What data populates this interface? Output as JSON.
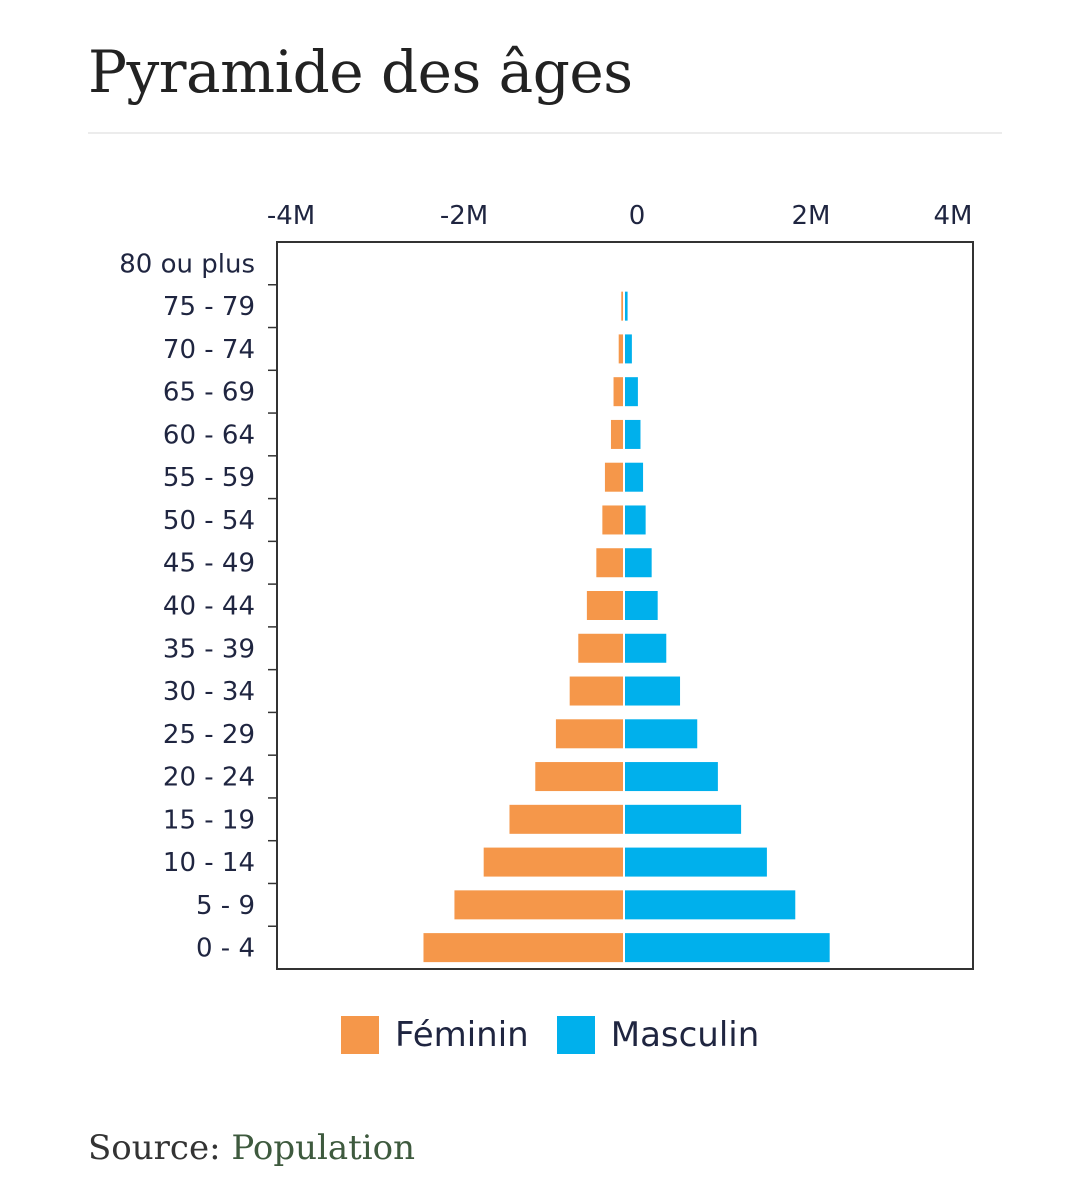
{
  "page": {
    "title": "Pyramide des âges"
  },
  "source": {
    "label": "Source:",
    "link_text": "Population"
  },
  "colors": {
    "feminin": "#F5974A",
    "masculin": "#00B0EC",
    "axis": "#333333",
    "text": "#1F2540"
  },
  "chart_data": {
    "type": "bar",
    "orientation": "horizontal",
    "title": "",
    "xlabel": "",
    "ylabel": "",
    "x_ticks": [
      "-4M",
      "-2M",
      "0",
      "2M",
      "4M"
    ],
    "xlim": [
      -4000000,
      4000000
    ],
    "categories": [
      "80 ou plus",
      "75 - 79",
      "70 - 74",
      "65 - 69",
      "60 - 64",
      "55 - 59",
      "50 - 54",
      "45 - 49",
      "40 - 44",
      "35 - 39",
      "30 - 34",
      "25 - 29",
      "20 - 24",
      "15 - 19",
      "10 - 14",
      "5 - 9",
      "0 - 4"
    ],
    "series": [
      {
        "name": "Féminin",
        "color": "#F5974A",
        "values": [
          0,
          20000,
          50000,
          110000,
          140000,
          210000,
          240000,
          310000,
          420000,
          520000,
          620000,
          780000,
          1020000,
          1320000,
          1620000,
          1960000,
          2320000
        ]
      },
      {
        "name": "Masculin",
        "color": "#00B0EC",
        "values": [
          0,
          30000,
          80000,
          150000,
          180000,
          210000,
          240000,
          310000,
          380000,
          480000,
          640000,
          840000,
          1080000,
          1350000,
          1650000,
          1980000,
          2380000
        ]
      }
    ],
    "grid": false,
    "legend": "bottom"
  }
}
